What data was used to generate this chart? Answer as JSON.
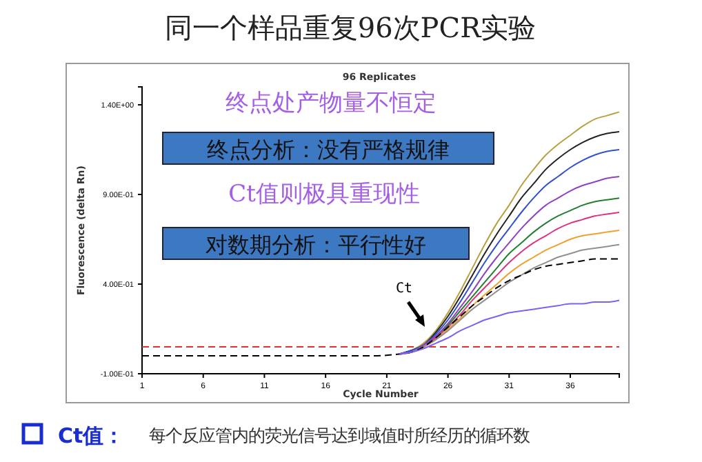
{
  "chart_data": {
    "type": "line",
    "title": "同一个样品重复96次PCR实验",
    "subtitle": "96 Replicates",
    "xlabel": "Cycle Number",
    "ylabel": "Fluorescence (delta Rn)",
    "x": [
      1,
      5,
      10,
      15,
      20,
      22,
      23,
      24,
      25,
      26,
      27,
      28,
      29,
      30,
      31,
      32,
      33,
      34,
      35,
      36,
      37,
      38,
      39,
      40
    ],
    "series": [
      {
        "color": "#b8a040",
        "values": [
          null,
          null,
          null,
          null,
          null,
          0.01,
          0.03,
          0.07,
          0.14,
          0.24,
          0.36,
          0.49,
          0.62,
          0.74,
          0.84,
          0.95,
          1.04,
          1.12,
          1.18,
          1.23,
          1.28,
          1.32,
          1.34,
          1.36
        ]
      },
      {
        "color": "#222222",
        "values": [
          null,
          null,
          null,
          null,
          null,
          0.01,
          0.03,
          0.06,
          0.13,
          0.22,
          0.33,
          0.45,
          0.57,
          0.68,
          0.78,
          0.88,
          0.96,
          1.04,
          1.1,
          1.15,
          1.19,
          1.22,
          1.24,
          1.25
        ]
      },
      {
        "color": "#3050d0",
        "values": [
          null,
          null,
          null,
          null,
          null,
          0.01,
          0.03,
          0.06,
          0.12,
          0.2,
          0.3,
          0.41,
          0.52,
          0.62,
          0.71,
          0.8,
          0.88,
          0.95,
          1.0,
          1.05,
          1.09,
          1.12,
          1.14,
          1.15
        ]
      },
      {
        "color": "#9040c0",
        "values": [
          null,
          null,
          null,
          null,
          null,
          0.01,
          0.02,
          0.06,
          0.11,
          0.18,
          0.27,
          0.36,
          0.46,
          0.55,
          0.63,
          0.71,
          0.78,
          0.84,
          0.88,
          0.92,
          0.95,
          0.97,
          0.99,
          1.0
        ]
      },
      {
        "color": "#208030",
        "values": [
          null,
          null,
          null,
          null,
          null,
          null,
          null,
          0.05,
          0.1,
          0.17,
          0.25,
          0.33,
          0.41,
          0.49,
          0.57,
          0.63,
          0.69,
          0.74,
          0.78,
          0.81,
          0.84,
          0.86,
          0.87,
          0.88
        ]
      },
      {
        "color": "#e03080",
        "values": [
          null,
          null,
          null,
          null,
          null,
          0.01,
          0.02,
          0.05,
          0.1,
          0.16,
          0.23,
          0.31,
          0.38,
          0.45,
          0.52,
          0.58,
          0.63,
          0.67,
          0.71,
          0.74,
          0.76,
          0.78,
          0.79,
          0.8
        ]
      },
      {
        "color": "#f0a030",
        "values": [
          null,
          null,
          null,
          null,
          null,
          0.01,
          0.02,
          0.05,
          0.09,
          0.15,
          0.21,
          0.28,
          0.34,
          0.4,
          0.46,
          0.51,
          0.55,
          0.59,
          0.62,
          0.65,
          0.67,
          0.68,
          0.69,
          0.7
        ]
      },
      {
        "color": "#909090",
        "values": [
          null,
          null,
          null,
          null,
          null,
          0.01,
          0.02,
          0.05,
          0.09,
          0.14,
          0.2,
          0.26,
          0.31,
          0.36,
          0.41,
          0.45,
          0.49,
          0.52,
          0.55,
          0.57,
          0.59,
          0.6,
          0.61,
          0.62
        ]
      },
      {
        "color": "#000000",
        "line_style": "dashed",
        "values": [
          0,
          0,
          0,
          0,
          0,
          0.01,
          0.02,
          0.05,
          0.1,
          0.16,
          0.22,
          0.28,
          0.33,
          0.38,
          0.42,
          0.45,
          0.48,
          0.5,
          0.51,
          0.52,
          0.53,
          0.54,
          0.54,
          0.54
        ]
      },
      {
        "color": "#8060f0",
        "values": [
          null,
          null,
          null,
          null,
          null,
          0.01,
          0.02,
          0.04,
          0.07,
          0.1,
          0.14,
          0.17,
          0.2,
          0.22,
          0.24,
          0.25,
          0.26,
          0.27,
          0.28,
          0.29,
          0.29,
          0.3,
          0.3,
          0.31
        ]
      }
    ],
    "xlim": [
      1,
      40
    ],
    "ylim": [
      -0.1,
      1.5
    ],
    "xticks": [
      1,
      6,
      11,
      16,
      21,
      26,
      31,
      36
    ],
    "yticks": [
      {
        "value": 1.4,
        "label": "1.40E+00"
      },
      {
        "value": 0.9,
        "label": "9.00E-01"
      },
      {
        "value": 0.4,
        "label": "4.00E-01"
      },
      {
        "value": -0.1,
        "label": "-1.00E-01"
      }
    ],
    "ref_lines": [
      {
        "axis": "y",
        "value": 0.05,
        "color": "#e03030",
        "line_style": "dashed"
      }
    ],
    "marker": "none",
    "line_style": "solid",
    "annotations": [
      "终点处产物量不恒定",
      "终点分析：没有严格规律",
      "Ct值则极具重现性",
      "对数期分析：平行性好",
      "Ct",
      "Ct值：",
      "每个反应管内的荧光信号达到域值时所经历的循环数"
    ]
  }
}
